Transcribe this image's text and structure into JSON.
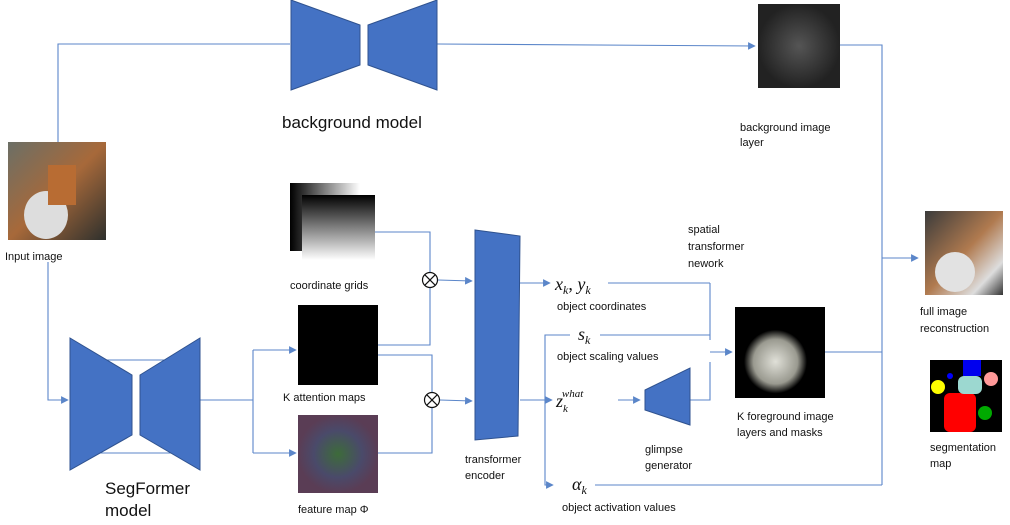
{
  "background_model": {
    "label": "background model"
  },
  "input_image": {
    "label": "Input image"
  },
  "background_layer": {
    "label": [
      "background image",
      "layer"
    ]
  },
  "full_image": {
    "label": [
      "full image",
      "reconstruction"
    ]
  },
  "segmentation": {
    "label": [
      "segmentation",
      "map"
    ]
  },
  "segformer": {
    "label": [
      "SegFormer",
      "model"
    ]
  },
  "coordinate_grids": {
    "label": "coordinate grids"
  },
  "attention_maps": {
    "label": "K attention maps"
  },
  "feature_map": {
    "label": "feature map Φ"
  },
  "transformer_encoder": {
    "label": [
      "transformer",
      "encoder"
    ]
  },
  "spatial_transformer": {
    "label": [
      "spatial",
      "transformer",
      "nework"
    ]
  },
  "coordinates": {
    "symbol": {
      "x": "x",
      "x_sub": "k",
      "sep": ", ",
      "y": "y",
      "y_sub": "k"
    },
    "label": "object coordinates"
  },
  "scaling": {
    "symbol": {
      "base": "s",
      "sub": "k"
    },
    "label": "object scaling values"
  },
  "what": {
    "symbol": {
      "base": "z",
      "sub": "k",
      "sup": "what"
    }
  },
  "glimpse_generator": {
    "label": [
      "glimpse",
      "generator"
    ]
  },
  "activation": {
    "symbol": {
      "base": "α",
      "sub": "k"
    },
    "label": "object activation values"
  },
  "foreground": {
    "label": [
      "K foreground image",
      "layers and masks"
    ]
  }
}
